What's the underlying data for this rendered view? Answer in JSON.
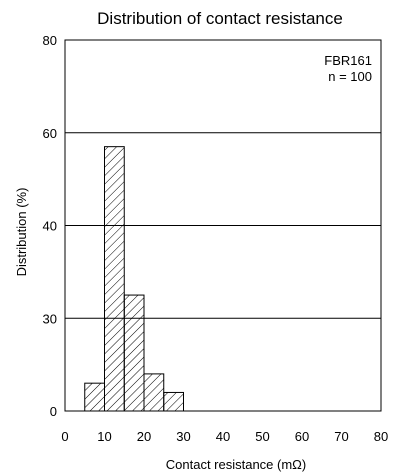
{
  "chart_data": {
    "type": "bar",
    "title": "Distribution of contact resistance",
    "xlabel": "Contact resistance (mΩ)",
    "ylabel": "Distribution (%)",
    "annotation": [
      "FBR161",
      "n = 100"
    ],
    "x_ticks": [
      "0",
      "10",
      "20",
      "30",
      "40",
      "50",
      "60",
      "70",
      "80"
    ],
    "y_ticks": [
      "0",
      "30",
      "40",
      "60",
      "80"
    ],
    "bins": [
      {
        "start": 5,
        "end": 10,
        "value": 6
      },
      {
        "start": 10,
        "end": 15,
        "value": 57
      },
      {
        "start": 15,
        "end": 20,
        "value": 25
      },
      {
        "start": 20,
        "end": 25,
        "value": 8
      },
      {
        "start": 25,
        "end": 30,
        "value": 4
      }
    ],
    "xlim": [
      0,
      80
    ],
    "ylim": [
      0,
      80
    ],
    "gridlines": "horizontal",
    "bar_fill": "diagonal hatch",
    "colors": {
      "line": "#000000",
      "background": "#ffffff"
    }
  }
}
